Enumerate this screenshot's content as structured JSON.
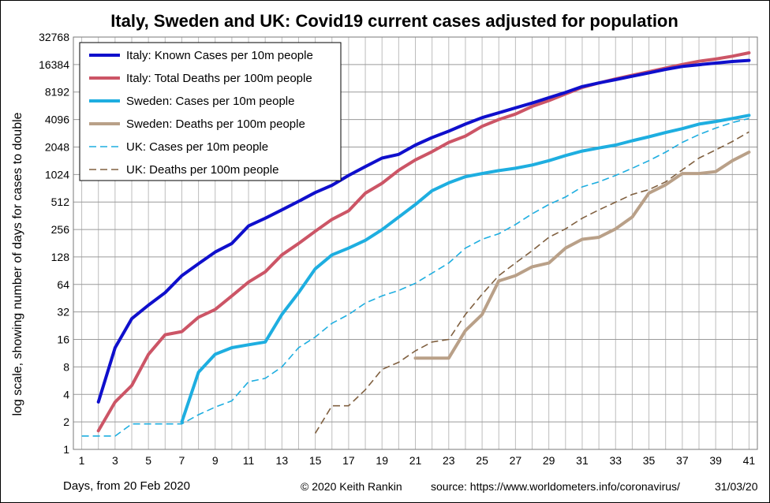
{
  "chart_data": {
    "type": "line",
    "title": "Italy, Sweden and UK: Covid19 current cases adjusted for population",
    "xlabel": "Days, from 20 Feb 2020",
    "ylabel": "log scale, showing number of days for cases to double",
    "yscale": "log2",
    "ylim": [
      1,
      32768
    ],
    "yticks": [
      "1",
      "2",
      "4",
      "8",
      "16",
      "32",
      "64",
      "128",
      "256",
      "512",
      "1024",
      "2048",
      "4096",
      "8192",
      "16384",
      "32768"
    ],
    "xlim": [
      0.5,
      41.5
    ],
    "xticks": [
      "1",
      "3",
      "5",
      "7",
      "9",
      "11",
      "13",
      "15",
      "17",
      "19",
      "21",
      "23",
      "25",
      "27",
      "29",
      "31",
      "33",
      "35",
      "37",
      "39",
      "41"
    ],
    "legend_position": "top-left",
    "grid": true,
    "series": [
      {
        "name": "Italy: Known Cases per 10m people",
        "color": "#0f0fcc",
        "style": "solid-thick",
        "x": [
          2,
          3,
          4,
          5,
          6,
          7,
          8,
          9,
          10,
          11,
          12,
          13,
          14,
          15,
          16,
          17,
          18,
          19,
          20,
          21,
          22,
          23,
          24,
          25,
          26,
          27,
          28,
          29,
          30,
          31,
          32,
          33,
          34,
          35,
          36,
          37,
          38,
          39,
          40,
          41
        ],
        "values": [
          3.3,
          13,
          27,
          38,
          52,
          80,
          108,
          145,
          180,
          280,
          340,
          420,
          520,
          650,
          780,
          1000,
          1250,
          1550,
          1700,
          2150,
          2600,
          3050,
          3650,
          4300,
          4850,
          5500,
          6200,
          7100,
          8100,
          9400,
          10300,
          11200,
          12200,
          13300,
          14500,
          15600,
          16300,
          17000,
          17700,
          18200
        ]
      },
      {
        "name": "Italy: Total Deaths per 100m people",
        "color": "#cc5566",
        "style": "solid-thick",
        "x": [
          2,
          3,
          4,
          5,
          6,
          7,
          8,
          9,
          10,
          11,
          12,
          13,
          14,
          15,
          16,
          17,
          18,
          19,
          20,
          21,
          22,
          23,
          24,
          25,
          26,
          27,
          28,
          29,
          30,
          31,
          32,
          33,
          34,
          35,
          36,
          37,
          38,
          39,
          40,
          41
        ],
        "values": [
          1.6,
          3.3,
          5,
          11,
          18,
          19.5,
          28,
          34,
          48,
          68,
          88,
          135,
          180,
          245,
          330,
          410,
          640,
          820,
          1140,
          1480,
          1820,
          2300,
          2700,
          3450,
          4100,
          4700,
          5700,
          6600,
          7800,
          9200,
          10300,
          11400,
          12500,
          13700,
          15000,
          16400,
          17800,
          18800,
          20200,
          22000
        ]
      },
      {
        "name": "Sweden: Cases per 10m people",
        "color": "#1eaee0",
        "style": "solid-thick",
        "x": [
          7,
          8,
          9,
          10,
          11,
          12,
          13,
          14,
          15,
          16,
          17,
          18,
          19,
          20,
          21,
          22,
          23,
          24,
          25,
          26,
          27,
          28,
          29,
          30,
          31,
          32,
          33,
          34,
          35,
          36,
          37,
          38,
          39,
          40,
          41
        ],
        "values": [
          2,
          7,
          11,
          13,
          14,
          15,
          30,
          52,
          95,
          135,
          160,
          195,
          255,
          350,
          480,
          680,
          830,
          970,
          1050,
          1130,
          1200,
          1300,
          1450,
          1650,
          1850,
          2000,
          2150,
          2400,
          2650,
          2950,
          3250,
          3650,
          3900,
          4200,
          4550
        ]
      },
      {
        "name": "Sweden: Deaths per 100m people",
        "color": "#b9a088",
        "style": "solid-thick",
        "x": [
          21,
          22,
          23,
          24,
          25,
          26,
          27,
          28,
          29,
          30,
          31,
          32,
          33,
          34,
          35,
          36,
          37,
          38,
          39,
          40,
          41
        ],
        "values": [
          10,
          10,
          10,
          20,
          30,
          70,
          80,
          100,
          110,
          160,
          200,
          210,
          260,
          350,
          640,
          790,
          1050,
          1050,
          1100,
          1450,
          1800
        ]
      },
      {
        "name": "UK: Cases per 10m people",
        "color": "#1eaee0",
        "style": "dashed-thin",
        "x": [
          1,
          2,
          3,
          4,
          5,
          6,
          7,
          8,
          9,
          10,
          11,
          12,
          13,
          14,
          15,
          16,
          17,
          18,
          19,
          20,
          21,
          22,
          23,
          24,
          25,
          26,
          27,
          28,
          29,
          30,
          31,
          32,
          33,
          34,
          35,
          36,
          37,
          38,
          39,
          40,
          41
        ],
        "values": [
          1.4,
          1.4,
          1.4,
          1.9,
          1.9,
          1.9,
          1.9,
          2.4,
          2.9,
          3.4,
          5.5,
          6,
          8,
          13,
          17,
          24,
          30,
          40,
          48,
          55,
          66,
          85,
          110,
          160,
          200,
          230,
          290,
          380,
          480,
          580,
          750,
          850,
          1000,
          1200,
          1450,
          1800,
          2300,
          2800,
          3300,
          3800,
          4200
        ]
      },
      {
        "name": "UK: Deaths per 100m people",
        "color": "#806040",
        "style": "dashed-thin",
        "x": [
          15,
          16,
          17,
          18,
          19,
          20,
          21,
          22,
          23,
          24,
          25,
          26,
          27,
          28,
          29,
          30,
          31,
          32,
          33,
          34,
          35,
          36,
          37,
          38,
          39,
          40,
          41
        ],
        "values": [
          1.5,
          3,
          3,
          4.5,
          7.5,
          9,
          12,
          15,
          16,
          30,
          50,
          80,
          110,
          150,
          210,
          260,
          340,
          420,
          510,
          620,
          700,
          850,
          1150,
          1550,
          1900,
          2350,
          3000
        ]
      }
    ]
  },
  "footer": {
    "xlabel": "Days, from 20 Feb 2020",
    "credit": "© 2020  Keith Rankin",
    "source": "source:  https://www.worldometers.info/coronavirus/",
    "date": "31/03/20"
  }
}
